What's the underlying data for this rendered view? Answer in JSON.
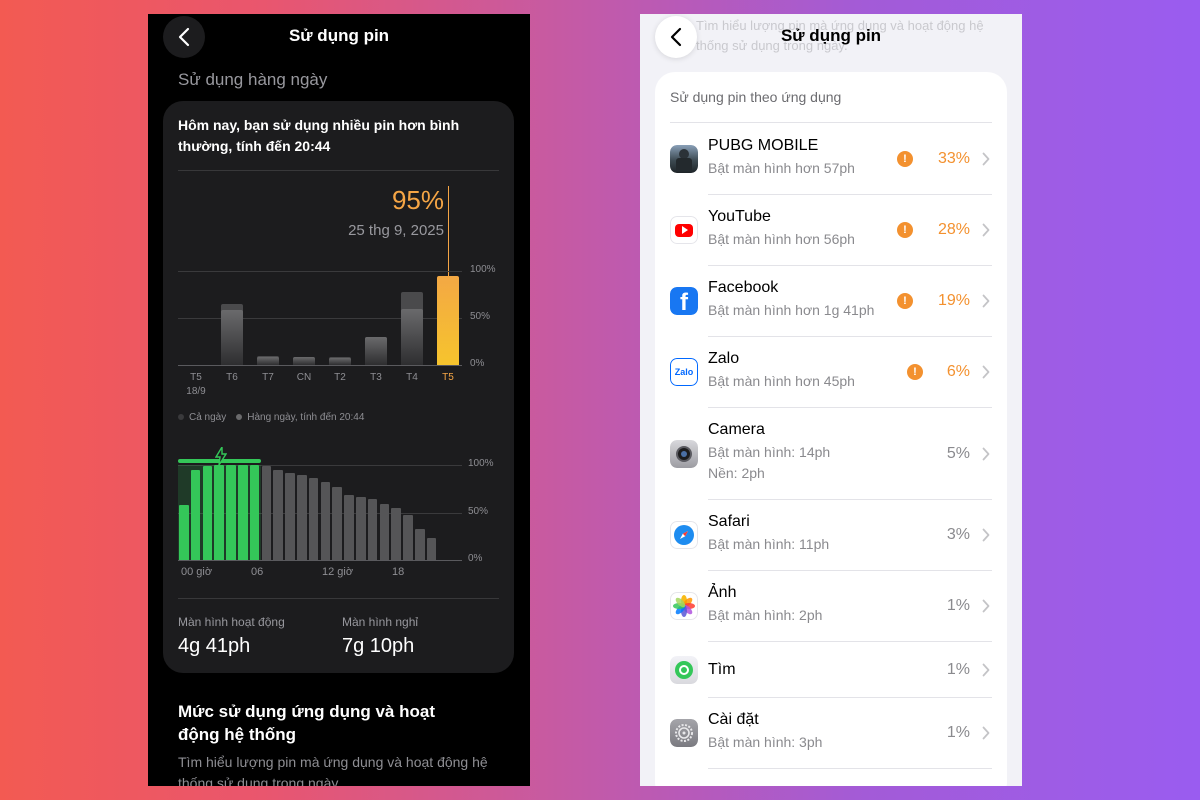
{
  "left_screen": {
    "title": "Sử dụng pin",
    "section_title": "Sử dụng hàng ngày",
    "headline": "Hôm nay, bạn sử dụng nhiều pin hơn bình thường, tính đến 20:44",
    "selected_value": "95%",
    "selected_date": "25 thg 9, 2025",
    "daily_chart": {
      "y_ticks": [
        "100%",
        "50%",
        "0%"
      ],
      "days": [
        {
          "label": "T5",
          "sub": "18/9",
          "total": 0,
          "today": 0
        },
        {
          "label": "T6",
          "sub": "",
          "total": 65,
          "today": 58
        },
        {
          "label": "T7",
          "sub": "",
          "total": 10,
          "today": 8
        },
        {
          "label": "CN",
          "sub": "",
          "total": 9,
          "today": 8
        },
        {
          "label": "T2",
          "sub": "",
          "total": 8,
          "today": 7
        },
        {
          "label": "T3",
          "sub": "",
          "total": 30,
          "today": 30
        },
        {
          "label": "T4",
          "sub": "",
          "total": 78,
          "today": 60
        },
        {
          "label": "T5",
          "sub": "",
          "total": 95,
          "today": 95
        }
      ],
      "selected_index": 7,
      "legend": [
        "Cả ngày",
        "Hàng ngày, tính đến 20:44"
      ]
    },
    "hourly_chart": {
      "y_ticks": [
        "100%",
        "50%",
        "0%"
      ],
      "x_ticks": [
        "00 giờ",
        "06",
        "12 giờ",
        "18"
      ],
      "charging_hours": 7,
      "levels": [
        58,
        95,
        99,
        100,
        100,
        100,
        100,
        99,
        95,
        92,
        89,
        86,
        82,
        77,
        68,
        66,
        64,
        59,
        55,
        47,
        33,
        23
      ]
    },
    "stats": {
      "screen_on_label": "Màn hình hoạt động",
      "screen_on_value": "4g 41ph",
      "screen_off_label": "Màn hình nghỉ",
      "screen_off_value": "7g 10ph"
    },
    "activity_title": "Mức sử dụng ứng dụng và hoạt động hệ thống",
    "activity_desc": "Tìm hiểu lượng pin mà ứng dụng và hoạt động hệ thống sử dụng trong ngày."
  },
  "right_screen": {
    "title": "Sử dụng pin",
    "faded_top": "Tìm hiểu lượng pin mà ứng dụng và hoạt động hệ thống sử dụng trong ngày.",
    "list_header": "Sử dụng pin theo ứng dụng",
    "apps": [
      {
        "name": "PUBG MOBILE",
        "sub": "Bật màn hình hơn 57ph",
        "sub2": "",
        "pct": "33%",
        "warn": true,
        "icon": "pubg-icon"
      },
      {
        "name": "YouTube",
        "sub": "Bật màn hình hơn 56ph",
        "sub2": "",
        "pct": "28%",
        "warn": true,
        "icon": "youtube-icon"
      },
      {
        "name": "Facebook",
        "sub": "Bật màn hình hơn 1g 41ph",
        "sub2": "",
        "pct": "19%",
        "warn": true,
        "icon": "facebook-icon"
      },
      {
        "name": "Zalo",
        "sub": "Bật màn hình hơn 45ph",
        "sub2": "",
        "pct": "6%",
        "warn": true,
        "icon": "zalo-icon"
      },
      {
        "name": "Camera",
        "sub": "Bật màn hình: 14ph",
        "sub2": "Nền: 2ph",
        "pct": "5%",
        "warn": false,
        "icon": "camera-icon"
      },
      {
        "name": "Safari",
        "sub": "Bật màn hình: 11ph",
        "sub2": "",
        "pct": "3%",
        "warn": false,
        "icon": "safari-icon"
      },
      {
        "name": "Ảnh",
        "sub": "Bật màn hình: 2ph",
        "sub2": "",
        "pct": "1%",
        "warn": false,
        "icon": "photos-icon"
      },
      {
        "name": "Tìm",
        "sub": "",
        "sub2": "",
        "pct": "1%",
        "warn": false,
        "icon": "find-my-icon"
      },
      {
        "name": "Cài đặt",
        "sub": "Bật màn hình: 3ph",
        "sub2": "",
        "pct": "1%",
        "warn": false,
        "icon": "settings-icon"
      }
    ],
    "icon_text": {
      "facebook": "f",
      "zalo": "Zalo"
    },
    "colors": {
      "warning": "#f3912f",
      "charging": "#34c759",
      "selected_bar": "#f5a545"
    }
  }
}
